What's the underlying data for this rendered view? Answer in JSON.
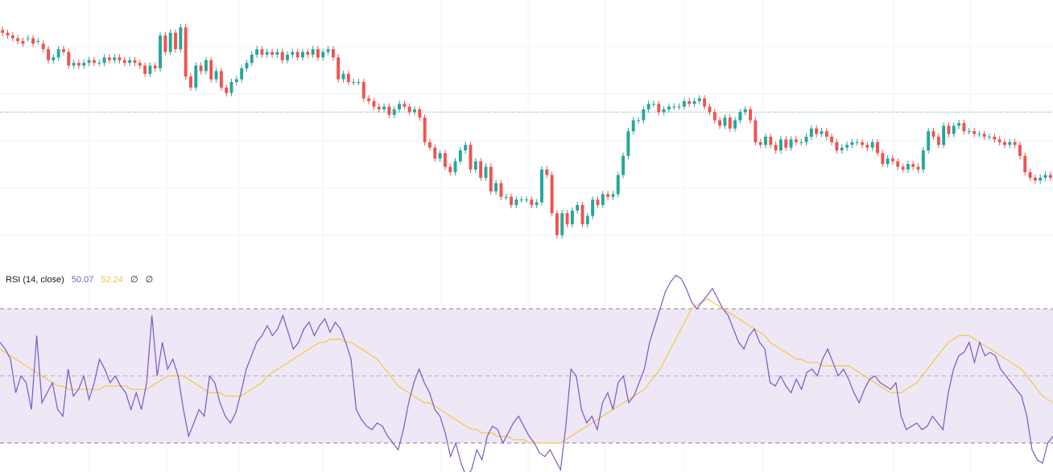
{
  "chart_data": [
    {
      "type": "candlestick",
      "title": "",
      "y_range": [
        0,
        100
      ],
      "horizontal_line": 59,
      "colors": {
        "up": "#26a69a",
        "down": "#ef5350",
        "line": "#26a69a"
      },
      "close": [
        88,
        87,
        86,
        85,
        84,
        86,
        84,
        85,
        82,
        78,
        79,
        82,
        81,
        76,
        77,
        76,
        77,
        78,
        77,
        77,
        79,
        78,
        79,
        78,
        77,
        78,
        77,
        76,
        73,
        76,
        75,
        87,
        81,
        88,
        82,
        90,
        72,
        68,
        76,
        74,
        78,
        71,
        74,
        68,
        66,
        70,
        71,
        75,
        77,
        80,
        82,
        80,
        81,
        80,
        81,
        78,
        80,
        81,
        79,
        81,
        80,
        82,
        79,
        81,
        82,
        79,
        71,
        73,
        70,
        70,
        70,
        64,
        63,
        61,
        60,
        61,
        58,
        60,
        62,
        61,
        59,
        60,
        57,
        48,
        46,
        42,
        44,
        39,
        37,
        41,
        45,
        47,
        38,
        41,
        35,
        39,
        30,
        33,
        28,
        28,
        25,
        27,
        27,
        27,
        25,
        26,
        38,
        36,
        22,
        14,
        22,
        18,
        23,
        25,
        18,
        21,
        27,
        25,
        29,
        28,
        29,
        36,
        43,
        52,
        56,
        56,
        60,
        62,
        62,
        59,
        60,
        61,
        61,
        61,
        63,
        62,
        63,
        64,
        61,
        59,
        56,
        54,
        57,
        53,
        56,
        59,
        60,
        56,
        48,
        47,
        50,
        47,
        45,
        49,
        46,
        49,
        48,
        48,
        50,
        53,
        51,
        52,
        50,
        48,
        45,
        46,
        47,
        48,
        48,
        47,
        46,
        48,
        44,
        40,
        42,
        41,
        39,
        38,
        40,
        39,
        38,
        45,
        52,
        50,
        47,
        54,
        51,
        54,
        55,
        52,
        52,
        51,
        51,
        50,
        50,
        49,
        48,
        47,
        48,
        47,
        43,
        37,
        35,
        34,
        35,
        36,
        35
      ],
      "open": [
        89,
        88,
        87,
        86,
        85,
        86,
        86,
        85,
        84,
        82,
        78,
        79,
        82,
        81,
        76,
        77,
        76,
        77,
        78,
        77,
        77,
        79,
        78,
        79,
        78,
        77,
        78,
        77,
        76,
        73,
        76,
        75,
        87,
        81,
        88,
        82,
        90,
        72,
        68,
        76,
        74,
        78,
        71,
        74,
        68,
        66,
        70,
        71,
        75,
        77,
        80,
        82,
        80,
        81,
        80,
        81,
        78,
        80,
        81,
        79,
        81,
        80,
        82,
        79,
        81,
        82,
        79,
        71,
        73,
        70,
        70,
        70,
        64,
        63,
        61,
        60,
        61,
        58,
        60,
        62,
        61,
        59,
        60,
        57,
        48,
        46,
        42,
        44,
        39,
        37,
        41,
        45,
        47,
        38,
        41,
        35,
        39,
        30,
        33,
        28,
        28,
        25,
        27,
        27,
        27,
        25,
        26,
        38,
        36,
        22,
        14,
        22,
        18,
        23,
        25,
        18,
        21,
        27,
        25,
        29,
        28,
        29,
        36,
        43,
        52,
        56,
        56,
        60,
        62,
        62,
        59,
        60,
        61,
        61,
        61,
        63,
        62,
        63,
        64,
        61,
        59,
        56,
        54,
        57,
        53,
        56,
        59,
        60,
        56,
        48,
        47,
        50,
        47,
        45,
        49,
        46,
        49,
        48,
        48,
        50,
        53,
        51,
        52,
        50,
        48,
        45,
        46,
        47,
        48,
        48,
        47,
        46,
        48,
        44,
        40,
        42,
        41,
        39,
        38,
        40,
        39,
        38,
        45,
        52,
        50,
        47,
        54,
        51,
        54,
        55,
        52,
        52,
        51,
        51,
        50,
        50,
        49,
        48,
        47,
        48,
        47,
        43,
        37,
        35,
        34,
        35,
        36
      ]
    },
    {
      "type": "line",
      "legend": {
        "name": "RSI (14, close)",
        "values": [
          "50.07",
          "52.24",
          "∅",
          "∅"
        ]
      },
      "ylim": [
        0,
        100
      ],
      "bands": [
        70,
        50,
        30
      ],
      "colors": {
        "rsi": "#7e57c2",
        "ma": "#f5c842",
        "band_fill": "#ede7f6",
        "band_line": "#787b86"
      },
      "series": [
        {
          "values": [
            60,
            58,
            55,
            45,
            50,
            48,
            40,
            62,
            42,
            45,
            48,
            40,
            38,
            52,
            44,
            46,
            50,
            43,
            48,
            55,
            52,
            48,
            50,
            47,
            45,
            40,
            45,
            40,
            48,
            68,
            50,
            60,
            52,
            55,
            50,
            40,
            32,
            36,
            40,
            38,
            50,
            48,
            42,
            38,
            36,
            39,
            45,
            52,
            56,
            60,
            62,
            65,
            62,
            64,
            68,
            63,
            58,
            60,
            64,
            66,
            62,
            65,
            67,
            63,
            66,
            64,
            60,
            55,
            40,
            37,
            35,
            34,
            36,
            35,
            32,
            30,
            28,
            34,
            42,
            48,
            52,
            48,
            45,
            40,
            38,
            33,
            26,
            30,
            24,
            20,
            22,
            28,
            25,
            32,
            35,
            34,
            30,
            33,
            36,
            38,
            35,
            32,
            30,
            27,
            26,
            28,
            25,
            22,
            35,
            52,
            50,
            40,
            36,
            38,
            34,
            42,
            45,
            40,
            48,
            50,
            42,
            44,
            48,
            52,
            60,
            65,
            70,
            75,
            78,
            80,
            79,
            76,
            72,
            70,
            72,
            74,
            76,
            73,
            70,
            68,
            64,
            60,
            58,
            62,
            64,
            60,
            58,
            48,
            47,
            50,
            47,
            45,
            49,
            46,
            51,
            52,
            50,
            55,
            58,
            54,
            50,
            52,
            49,
            45,
            42,
            46,
            49,
            50,
            48,
            47,
            46,
            48,
            38,
            34,
            35,
            36,
            34,
            35,
            38,
            36,
            34,
            45,
            52,
            56,
            57,
            60,
            54,
            60,
            56,
            57,
            56,
            52,
            50,
            48,
            46,
            44,
            38,
            28,
            25,
            24,
            30,
            32
          ]
        },
        {
          "values": [
            58,
            57,
            56,
            55,
            54,
            53,
            52,
            51,
            50,
            49,
            48,
            47,
            47,
            46,
            46,
            46,
            46,
            46,
            46,
            46,
            47,
            47,
            47,
            47,
            47,
            46,
            46,
            46,
            46,
            47,
            48,
            49,
            50,
            50,
            50,
            50,
            49,
            48,
            47,
            46,
            45,
            45,
            45,
            44,
            44,
            44,
            44,
            45,
            46,
            47,
            48,
            50,
            51,
            52,
            53,
            54,
            55,
            56,
            57,
            58,
            59,
            60,
            60,
            61,
            61,
            61,
            60,
            60,
            59,
            58,
            57,
            56,
            55,
            53,
            51,
            49,
            47,
            46,
            45,
            44,
            43,
            42,
            42,
            41,
            40,
            39,
            38,
            37,
            36,
            35,
            34,
            34,
            33,
            33,
            33,
            32,
            32,
            32,
            31,
            31,
            31,
            30,
            30,
            30,
            30,
            30,
            30,
            30,
            31,
            32,
            33,
            34,
            35,
            36,
            37,
            38,
            39,
            40,
            41,
            42,
            43,
            44,
            45,
            46,
            48,
            50,
            52,
            55,
            58,
            61,
            64,
            67,
            70,
            71,
            72,
            73,
            72,
            71,
            70,
            69,
            68,
            67,
            66,
            65,
            64,
            63,
            62,
            60,
            59,
            58,
            57,
            56,
            55,
            55,
            54,
            54,
            54,
            53,
            53,
            53,
            53,
            53,
            53,
            52,
            51,
            50,
            49,
            48,
            47,
            46,
            45,
            45,
            45,
            46,
            47,
            48,
            50,
            52,
            54,
            56,
            58,
            60,
            61,
            62,
            62,
            62,
            61,
            60,
            59,
            58,
            57,
            56,
            55,
            54,
            53,
            52,
            50,
            48,
            46,
            44,
            43,
            42
          ]
        }
      ]
    }
  ]
}
